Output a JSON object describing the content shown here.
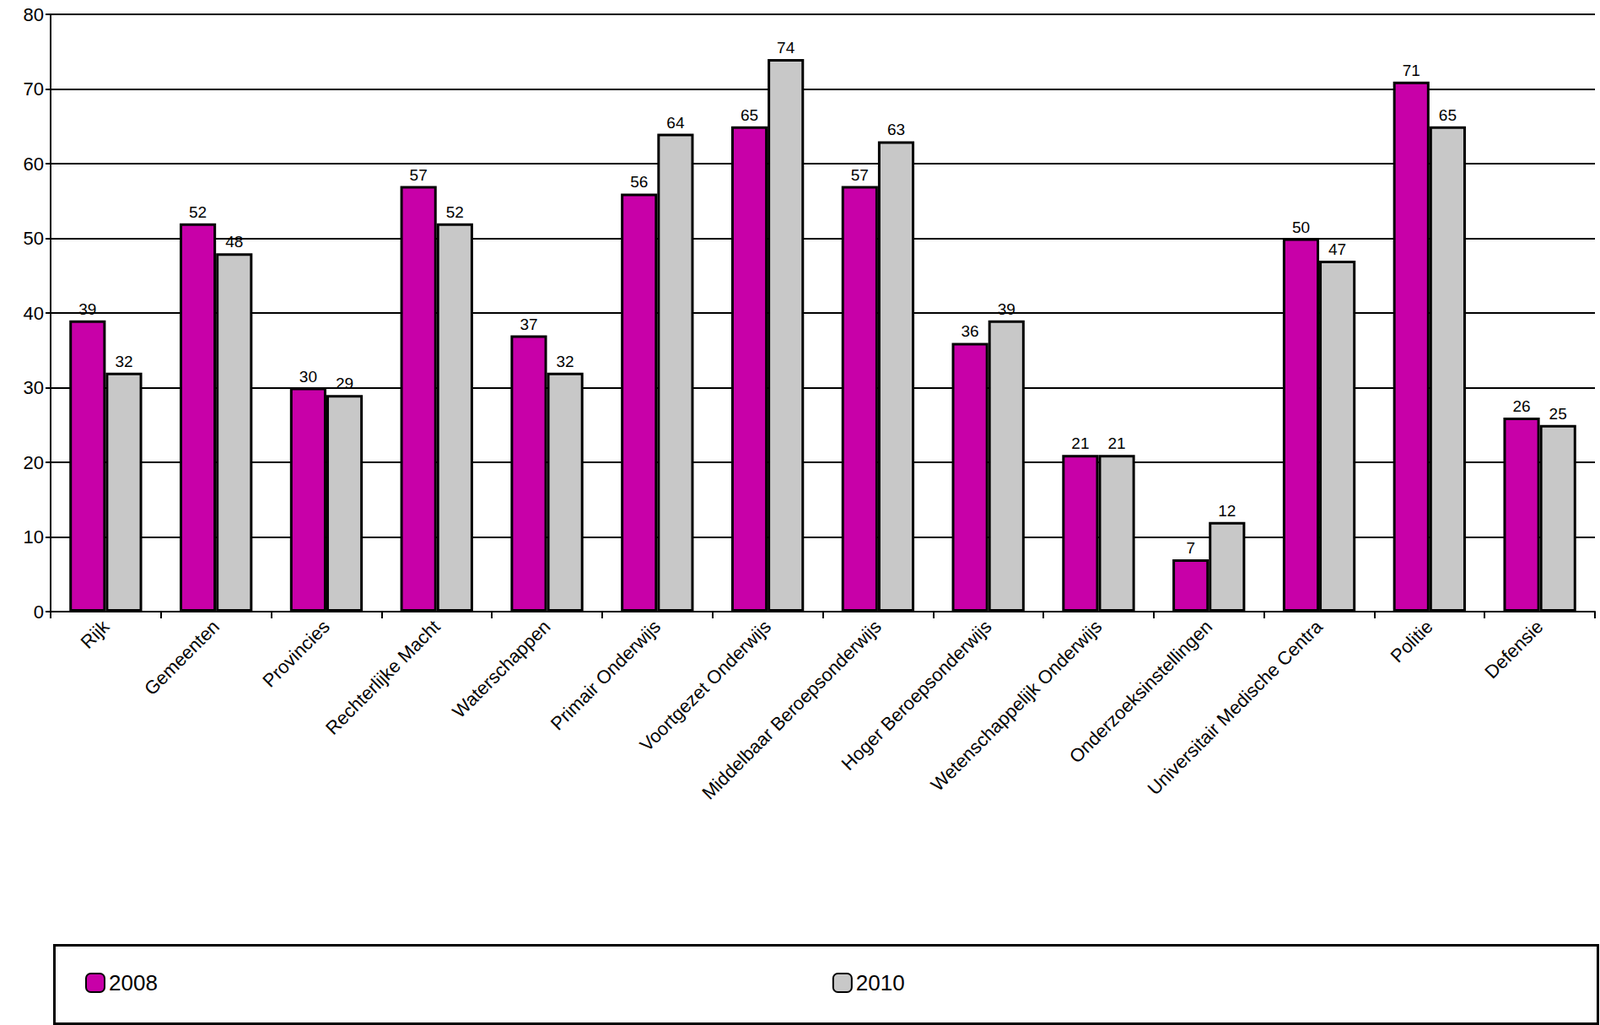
{
  "chart_data": {
    "type": "bar",
    "categories": [
      "Rijk",
      "Gemeenten",
      "Provincies",
      "Rechterlijke Macht",
      "Waterschappen",
      "Primair Onderwijs",
      "Voortgezet Onderwijs",
      "Middelbaar Beroepsonderwijs",
      "Hoger Beroepsonderwijs",
      "Wetenschappelijk Onderwijs",
      "Onderzoeksinstellingen",
      "Universitair Medische Centra",
      "Politie",
      "Defensie"
    ],
    "series": [
      {
        "name": "2008",
        "color": "#c800a8",
        "values": [
          39,
          52,
          30,
          57,
          37,
          56,
          65,
          57,
          36,
          21,
          7,
          50,
          71,
          26
        ]
      },
      {
        "name": "2010",
        "color": "#c8c8c8",
        "values": [
          32,
          48,
          29,
          52,
          32,
          64,
          74,
          63,
          39,
          21,
          12,
          47,
          65,
          25
        ]
      }
    ],
    "ylim": [
      0,
      80
    ],
    "yticks": [
      0,
      10,
      20,
      30,
      40,
      50,
      60,
      70,
      80
    ],
    "grid": true,
    "legend": "bottom",
    "data_labels": true
  }
}
